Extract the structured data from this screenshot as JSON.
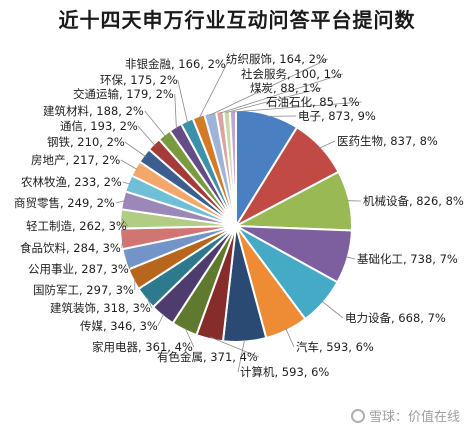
{
  "chart_data": {
    "type": "pie",
    "title": "近十四天申万行业互动问答平台提问数",
    "slices": [
      {
        "label": "电子",
        "value": 873,
        "pct": "9%",
        "color": "#4a7fc1"
      },
      {
        "label": "医药生物",
        "value": 837,
        "pct": "8%",
        "color": "#c24a45"
      },
      {
        "label": "机械设备",
        "value": 826,
        "pct": "8%",
        "color": "#98b954"
      },
      {
        "label": "基础化工",
        "value": 738,
        "pct": "7%",
        "color": "#7d5fa0"
      },
      {
        "label": "电力设备",
        "value": 668,
        "pct": "7%",
        "color": "#45aac6"
      },
      {
        "label": "汽车",
        "value": 593,
        "pct": "6%",
        "color": "#ee8c35"
      },
      {
        "label": "计算机",
        "value": 593,
        "pct": "6%",
        "color": "#2b4a73"
      },
      {
        "label": "有色金属",
        "value": 371,
        "pct": "4%",
        "color": "#862c2b"
      },
      {
        "label": "家用电器",
        "value": 361,
        "pct": "4%",
        "color": "#5f7a2f"
      },
      {
        "label": "传媒",
        "value": 346,
        "pct": "3%",
        "color": "#4f3c6e"
      },
      {
        "label": "建筑装饰",
        "value": 318,
        "pct": "3%",
        "color": "#2d7a8e"
      },
      {
        "label": "国防军工",
        "value": 297,
        "pct": "3%",
        "color": "#b8661d"
      },
      {
        "label": "公用事业",
        "value": 287,
        "pct": "3%",
        "color": "#7294c9"
      },
      {
        "label": "食品饮料",
        "value": 284,
        "pct": "3%",
        "color": "#d17573"
      },
      {
        "label": "轻工制造",
        "value": 262,
        "pct": "3%",
        "color": "#b3cc84"
      },
      {
        "label": "商贸零售",
        "value": 249,
        "pct": "2%",
        "color": "#9b87b8"
      },
      {
        "label": "农林牧渔",
        "value": 233,
        "pct": "2%",
        "color": "#6fc0d6"
      },
      {
        "label": "房地产",
        "value": 217,
        "pct": "2%",
        "color": "#f4a76a"
      },
      {
        "label": "钢铁",
        "value": 210,
        "pct": "2%",
        "color": "#3b5e8f"
      },
      {
        "label": "通信",
        "value": 193,
        "pct": "2%",
        "color": "#a43b38"
      },
      {
        "label": "建筑材料",
        "value": 188,
        "pct": "2%",
        "color": "#7a9a3f"
      },
      {
        "label": "交通运输",
        "value": 179,
        "pct": "2%",
        "color": "#644c87"
      },
      {
        "label": "环保",
        "value": 175,
        "pct": "2%",
        "color": "#3b91a8"
      },
      {
        "label": "非银金融",
        "value": 166,
        "pct": "2%",
        "color": "#d57a27"
      },
      {
        "label": "纺织服饰",
        "value": 164,
        "pct": "2%",
        "color": "#9db3da"
      },
      {
        "label": "社会服务",
        "value": 100,
        "pct": "1%",
        "color": "#dca3a1"
      },
      {
        "label": "煤炭",
        "value": 88,
        "pct": "1%",
        "color": "#c8d9a6"
      },
      {
        "label": "石油石化",
        "value": 85,
        "pct": "1%",
        "color": "#b8abcc"
      }
    ]
  },
  "watermark": {
    "text": "雪球：价值在线"
  }
}
